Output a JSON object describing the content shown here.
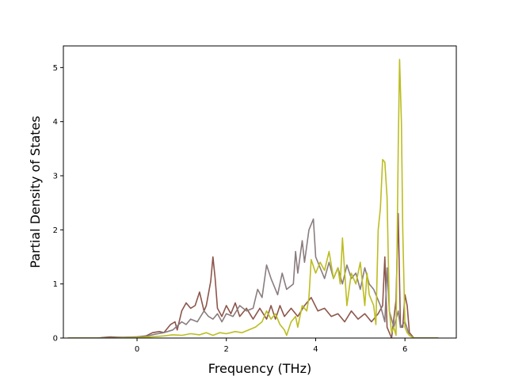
{
  "chart_data": {
    "type": "line",
    "xlabel": "Frequency (THz)",
    "ylabel": "Partial Density of States",
    "xlim": [
      -1.65,
      7.15
    ],
    "ylim": [
      0,
      5.4
    ],
    "xticks": [
      0,
      2,
      4,
      6
    ],
    "yticks": [
      0,
      1,
      2,
      3,
      4,
      5
    ],
    "grid": false,
    "series": [
      {
        "color": "#8c564b",
        "points": [
          [
            -1.55,
            0
          ],
          [
            -0.9,
            0
          ],
          [
            -0.6,
            0.02
          ],
          [
            -0.3,
            0.01
          ],
          [
            0,
            0.02
          ],
          [
            0.2,
            0.04
          ],
          [
            0.35,
            0.1
          ],
          [
            0.5,
            0.12
          ],
          [
            0.6,
            0.1
          ],
          [
            0.75,
            0.25
          ],
          [
            0.85,
            0.3
          ],
          [
            0.9,
            0.15
          ],
          [
            1.0,
            0.5
          ],
          [
            1.1,
            0.65
          ],
          [
            1.2,
            0.55
          ],
          [
            1.3,
            0.6
          ],
          [
            1.4,
            0.85
          ],
          [
            1.5,
            0.5
          ],
          [
            1.55,
            0.6
          ],
          [
            1.65,
            1.05
          ],
          [
            1.7,
            1.5
          ],
          [
            1.75,
            1.1
          ],
          [
            1.8,
            0.55
          ],
          [
            1.9,
            0.4
          ],
          [
            2.0,
            0.6
          ],
          [
            2.1,
            0.45
          ],
          [
            2.2,
            0.65
          ],
          [
            2.3,
            0.4
          ],
          [
            2.45,
            0.55
          ],
          [
            2.6,
            0.35
          ],
          [
            2.75,
            0.55
          ],
          [
            2.9,
            0.35
          ],
          [
            3.0,
            0.6
          ],
          [
            3.1,
            0.35
          ],
          [
            3.2,
            0.6
          ],
          [
            3.3,
            0.4
          ],
          [
            3.45,
            0.55
          ],
          [
            3.6,
            0.4
          ],
          [
            3.75,
            0.6
          ],
          [
            3.9,
            0.75
          ],
          [
            4.05,
            0.5
          ],
          [
            4.2,
            0.55
          ],
          [
            4.35,
            0.4
          ],
          [
            4.5,
            0.45
          ],
          [
            4.65,
            0.3
          ],
          [
            4.8,
            0.5
          ],
          [
            4.95,
            0.35
          ],
          [
            5.1,
            0.45
          ],
          [
            5.25,
            0.3
          ],
          [
            5.4,
            0.45
          ],
          [
            5.5,
            0.6
          ],
          [
            5.55,
            1.5
          ],
          [
            5.6,
            0.2
          ],
          [
            5.7,
            0
          ],
          [
            5.8,
            0.7
          ],
          [
            5.85,
            2.3
          ],
          [
            5.9,
            0.2
          ],
          [
            5.95,
            0.2
          ],
          [
            6.0,
            0.8
          ],
          [
            6.05,
            0.6
          ],
          [
            6.1,
            0.1
          ],
          [
            6.2,
            0
          ],
          [
            6.75,
            0
          ]
        ]
      },
      {
        "color": "#8a7c7e",
        "points": [
          [
            -1.55,
            0
          ],
          [
            -0.9,
            0
          ],
          [
            -0.5,
            0.01
          ],
          [
            0,
            0.02
          ],
          [
            0.2,
            0.03
          ],
          [
            0.4,
            0.07
          ],
          [
            0.6,
            0.1
          ],
          [
            0.8,
            0.15
          ],
          [
            1.0,
            0.3
          ],
          [
            1.1,
            0.25
          ],
          [
            1.2,
            0.35
          ],
          [
            1.35,
            0.3
          ],
          [
            1.5,
            0.5
          ],
          [
            1.6,
            0.4
          ],
          [
            1.7,
            0.35
          ],
          [
            1.8,
            0.45
          ],
          [
            1.9,
            0.3
          ],
          [
            2.0,
            0.45
          ],
          [
            2.15,
            0.4
          ],
          [
            2.3,
            0.6
          ],
          [
            2.45,
            0.5
          ],
          [
            2.6,
            0.55
          ],
          [
            2.7,
            0.9
          ],
          [
            2.8,
            0.75
          ],
          [
            2.9,
            1.35
          ],
          [
            3.0,
            1.1
          ],
          [
            3.15,
            0.8
          ],
          [
            3.25,
            1.2
          ],
          [
            3.35,
            0.9
          ],
          [
            3.5,
            1.0
          ],
          [
            3.55,
            1.6
          ],
          [
            3.6,
            1.2
          ],
          [
            3.7,
            1.8
          ],
          [
            3.75,
            1.4
          ],
          [
            3.85,
            2.0
          ],
          [
            3.95,
            2.2
          ],
          [
            4.0,
            1.5
          ],
          [
            4.1,
            1.3
          ],
          [
            4.2,
            1.1
          ],
          [
            4.3,
            1.4
          ],
          [
            4.4,
            1.1
          ],
          [
            4.5,
            1.3
          ],
          [
            4.6,
            1.0
          ],
          [
            4.7,
            1.35
          ],
          [
            4.8,
            1.1
          ],
          [
            4.9,
            1.2
          ],
          [
            5.0,
            0.9
          ],
          [
            5.1,
            1.3
          ],
          [
            5.2,
            1.0
          ],
          [
            5.3,
            0.9
          ],
          [
            5.45,
            0.6
          ],
          [
            5.55,
            0.3
          ],
          [
            5.6,
            1.3
          ],
          [
            5.65,
            0.5
          ],
          [
            5.75,
            0.2
          ],
          [
            5.85,
            0.5
          ],
          [
            5.9,
            0.2
          ],
          [
            6.0,
            0.3
          ],
          [
            6.1,
            0.05
          ],
          [
            6.2,
            0
          ],
          [
            6.75,
            0
          ]
        ]
      },
      {
        "color": "#bcbd22",
        "points": [
          [
            -1.55,
            0
          ],
          [
            -0.5,
            0
          ],
          [
            0,
            0.01
          ],
          [
            0.3,
            0.02
          ],
          [
            0.6,
            0.04
          ],
          [
            0.8,
            0.06
          ],
          [
            1.0,
            0.05
          ],
          [
            1.2,
            0.08
          ],
          [
            1.4,
            0.06
          ],
          [
            1.55,
            0.1
          ],
          [
            1.7,
            0.05
          ],
          [
            1.85,
            0.1
          ],
          [
            2.0,
            0.08
          ],
          [
            2.2,
            0.12
          ],
          [
            2.35,
            0.1
          ],
          [
            2.5,
            0.15
          ],
          [
            2.65,
            0.2
          ],
          [
            2.8,
            0.3
          ],
          [
            2.9,
            0.5
          ],
          [
            3.0,
            0.35
          ],
          [
            3.1,
            0.45
          ],
          [
            3.2,
            0.25
          ],
          [
            3.3,
            0.15
          ],
          [
            3.35,
            0.05
          ],
          [
            3.45,
            0.3
          ],
          [
            3.55,
            0.4
          ],
          [
            3.6,
            0.2
          ],
          [
            3.7,
            0.6
          ],
          [
            3.8,
            0.5
          ],
          [
            3.85,
            0.75
          ],
          [
            3.9,
            1.45
          ],
          [
            4.0,
            1.2
          ],
          [
            4.1,
            1.4
          ],
          [
            4.2,
            1.25
          ],
          [
            4.3,
            1.6
          ],
          [
            4.4,
            1.1
          ],
          [
            4.5,
            1.3
          ],
          [
            4.55,
            1.0
          ],
          [
            4.6,
            1.85
          ],
          [
            4.7,
            0.6
          ],
          [
            4.8,
            1.2
          ],
          [
            4.9,
            1.0
          ],
          [
            5.0,
            1.4
          ],
          [
            5.1,
            0.6
          ],
          [
            5.15,
            1.2
          ],
          [
            5.2,
            0.8
          ],
          [
            5.3,
            0.6
          ],
          [
            5.35,
            0.25
          ],
          [
            5.4,
            2.0
          ],
          [
            5.45,
            2.4
          ],
          [
            5.5,
            3.3
          ],
          [
            5.55,
            3.25
          ],
          [
            5.6,
            2.6
          ],
          [
            5.65,
            0.5
          ],
          [
            5.7,
            0.1
          ],
          [
            5.75,
            0.2
          ],
          [
            5.8,
            0.05
          ],
          [
            5.85,
            3.5
          ],
          [
            5.88,
            5.15
          ],
          [
            5.92,
            4.0
          ],
          [
            5.95,
            2.0
          ],
          [
            6.0,
            0.2
          ],
          [
            6.05,
            0.1
          ],
          [
            6.1,
            0.05
          ],
          [
            6.2,
            0
          ],
          [
            6.75,
            0
          ]
        ]
      }
    ]
  }
}
